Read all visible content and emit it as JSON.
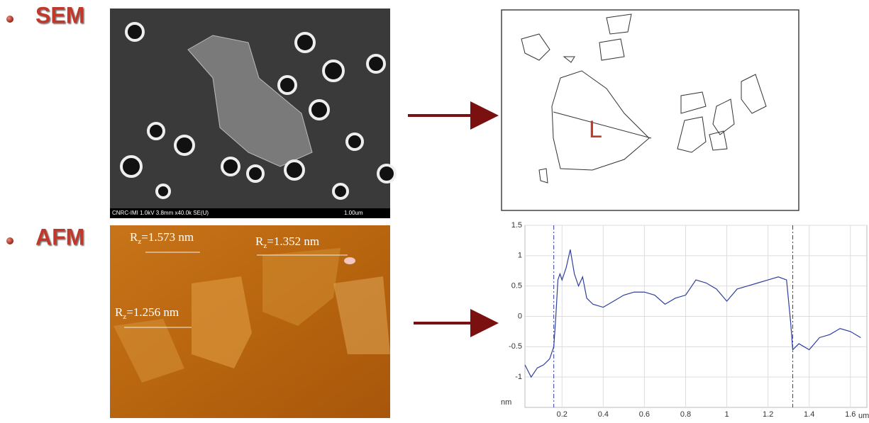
{
  "slide": {
    "items": [
      {
        "label": "SEM",
        "image_caption": "CNRC-IMI 1.0kV 3.8mm x40.0k SE(U)",
        "scale_label": "1.00um",
        "outline_label": "L"
      },
      {
        "label": "AFM",
        "annotations": [
          {
            "symbol": "R",
            "subscript": "z",
            "text": "=1.573 nm"
          },
          {
            "symbol": "R",
            "subscript": "z",
            "text": "=1.352 nm"
          },
          {
            "symbol": "R",
            "subscript": "z",
            "text": "=1.256 nm"
          }
        ]
      }
    ]
  },
  "chart_data": {
    "type": "line",
    "x_label": "um",
    "y_label": "nm",
    "x": [
      0.02,
      0.05,
      0.08,
      0.11,
      0.14,
      0.16,
      0.17,
      0.18,
      0.19,
      0.2,
      0.22,
      0.24,
      0.26,
      0.28,
      0.3,
      0.32,
      0.35,
      0.4,
      0.45,
      0.5,
      0.55,
      0.6,
      0.65,
      0.7,
      0.75,
      0.8,
      0.85,
      0.9,
      0.95,
      1.0,
      1.05,
      1.1,
      1.15,
      1.2,
      1.25,
      1.29,
      1.31,
      1.32,
      1.35,
      1.4,
      1.45,
      1.5,
      1.55,
      1.6,
      1.65
    ],
    "series": [
      {
        "color": "#2e3f9e",
        "values": [
          -0.8,
          -1.0,
          -0.85,
          -0.8,
          -0.7,
          -0.5,
          0.0,
          0.6,
          0.7,
          0.6,
          0.8,
          1.1,
          0.7,
          0.5,
          0.65,
          0.3,
          0.2,
          0.15,
          0.25,
          0.35,
          0.4,
          0.4,
          0.35,
          0.2,
          0.3,
          0.35,
          0.6,
          0.55,
          0.45,
          0.25,
          0.45,
          0.5,
          0.55,
          0.6,
          0.65,
          0.6,
          -0.1,
          -0.55,
          -0.45,
          -0.55,
          -0.35,
          -0.3,
          -0.2,
          -0.25,
          -0.35
        ]
      }
    ],
    "markers": [
      0.16,
      1.32
    ],
    "xlim": [
      0.02,
      1.68
    ],
    "ylim": [
      -1.5,
      1.5
    ],
    "xticks": [
      0.2,
      0.4,
      0.6,
      0.8,
      1,
      1.2,
      1.4,
      1.6
    ],
    "yticks": [
      -1,
      -0.5,
      0,
      0.5,
      1,
      1.5
    ],
    "grid": true
  }
}
